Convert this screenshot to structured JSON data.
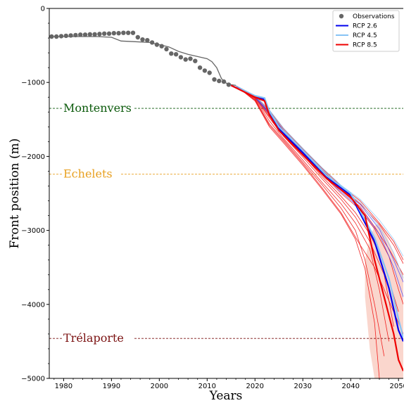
{
  "chart_data": {
    "type": "line",
    "title": "",
    "xlabel": "Years",
    "ylabel": "Front position (m)",
    "xlim": [
      1977,
      2051
    ],
    "ylim": [
      -5000,
      0
    ],
    "x_ticks": [
      1980,
      1990,
      2000,
      2010,
      2020,
      2030,
      2040,
      2050
    ],
    "y_ticks": [
      0,
      -1000,
      -2000,
      -3000,
      -4000,
      -5000
    ],
    "grid": false,
    "legend_position": "top-right",
    "legend": [
      {
        "label": "Observations",
        "kind": "marker",
        "color": "#666666"
      },
      {
        "label": "RCP 2.6",
        "kind": "line",
        "color": "#0000ee"
      },
      {
        "label": "RCP 4.5",
        "kind": "line",
        "color": "#87c3f5"
      },
      {
        "label": "RCP 8.5",
        "kind": "line",
        "color": "#ee0000"
      }
    ],
    "reference_lines": [
      {
        "label": "Montenvers",
        "y": -1350,
        "color": "#0b5a0b"
      },
      {
        "label": "Echelets",
        "y": -2240,
        "color": "#e8a020"
      },
      {
        "label": "Trélaporte",
        "y": -4460,
        "color": "#7a1010"
      }
    ],
    "observations": {
      "x": [
        1977.5,
        1978.5,
        1979.5,
        1980.5,
        1981.5,
        1982.5,
        1983.5,
        1984.5,
        1985.5,
        1986.5,
        1987.5,
        1988.5,
        1989.5,
        1990.5,
        1991.5,
        1992.5,
        1993.5,
        1994.5,
        1995.5,
        1996.5,
        1997.5,
        1998.5,
        1999.5,
        2000.5,
        2001.5,
        2002.5,
        2003.5,
        2004.5,
        2005.5,
        2006.5,
        2007.5,
        2008.5,
        2009.5,
        2010.5,
        2011.5,
        2012.5,
        2013.5,
        2014.5
      ],
      "y": [
        -380,
        -380,
        -375,
        -370,
        -365,
        -360,
        -355,
        -355,
        -350,
        -350,
        -345,
        -340,
        -340,
        -335,
        -335,
        -330,
        -330,
        -330,
        -390,
        -420,
        -430,
        -460,
        -490,
        -510,
        -550,
        -610,
        -620,
        -660,
        -690,
        -680,
        -710,
        -800,
        -840,
        -870,
        -960,
        -980,
        -990,
        -1030
      ]
    },
    "modelled_past": {
      "x": [
        1977,
        1982,
        1987,
        1990,
        1992,
        1995,
        1998,
        2000,
        2002,
        2004,
        2006,
        2008,
        2010,
        2011,
        2012,
        2013,
        2014,
        2015,
        2016
      ],
      "y": [
        -380,
        -380,
        -380,
        -390,
        -440,
        -450,
        -460,
        -490,
        -520,
        -580,
        -620,
        -650,
        -680,
        -720,
        -800,
        -950,
        -1010,
        -1030,
        -1040
      ]
    },
    "rcp85_uncertainty_band": {
      "x": [
        2043,
        2044,
        2045,
        2046,
        2047,
        2048,
        2049,
        2050,
        2051
      ],
      "upper": [
        -3400,
        -3100,
        -2940,
        -2900,
        -3000,
        -3150,
        -3300,
        -3480,
        -3600
      ],
      "lower": [
        -3900,
        -4600,
        -5000,
        -5000,
        -5000,
        -5000,
        -5000,
        -5000,
        -5000
      ]
    },
    "series": [
      {
        "name": "RCP 2.6",
        "color": "#0000ee",
        "x": [
          2015,
          2020,
          2022,
          2023,
          2025,
          2030,
          2035,
          2040,
          2045,
          2048,
          2050,
          2051
        ],
        "y": [
          -1040,
          -1190,
          -1230,
          -1420,
          -1630,
          -1950,
          -2280,
          -2520,
          -3150,
          -3780,
          -4350,
          -4500
        ]
      },
      {
        "name": "RCP 4.5",
        "color": "#87c3f5",
        "x": [
          2015,
          2020,
          2022,
          2023,
          2025,
          2030,
          2035,
          2040,
          2045,
          2048,
          2050,
          2051
        ],
        "y": [
          -1040,
          -1180,
          -1210,
          -1390,
          -1600,
          -1920,
          -2260,
          -2500,
          -3100,
          -3650,
          -4200,
          -4450
        ]
      },
      {
        "name": "RCP 8.5",
        "color": "#ee0000",
        "x": [
          2015,
          2020,
          2022,
          2023,
          2025,
          2030,
          2035,
          2040,
          2043,
          2045,
          2047,
          2049,
          2050,
          2051
        ],
        "y": [
          -1040,
          -1200,
          -1250,
          -1440,
          -1650,
          -1980,
          -2300,
          -2550,
          -2800,
          -3400,
          -3900,
          -4400,
          -4750,
          -4900
        ]
      }
    ],
    "members": [
      {
        "color": "#ee0000",
        "x": [
          2016,
          2020,
          2023,
          2026,
          2030,
          2034,
          2038,
          2041,
          2043,
          2045,
          2046
        ],
        "y": [
          -1045,
          -1250,
          -1600,
          -1820,
          -2120,
          -2440,
          -2780,
          -3120,
          -3520,
          -4250,
          -5000
        ]
      },
      {
        "color": "#ee0000",
        "x": [
          2016,
          2020,
          2023,
          2026,
          2030,
          2034,
          2038,
          2041,
          2043,
          2045,
          2047
        ],
        "y": [
          -1045,
          -1230,
          -1560,
          -1780,
          -2080,
          -2380,
          -2700,
          -3000,
          -3400,
          -4000,
          -4700
        ]
      },
      {
        "color": "#ee0000",
        "x": [
          2016,
          2020,
          2023,
          2026,
          2030,
          2034,
          2038,
          2041,
          2044,
          2046,
          2048
        ],
        "y": [
          -1045,
          -1220,
          -1520,
          -1760,
          -2050,
          -2350,
          -2640,
          -2900,
          -3250,
          -3800,
          -4500
        ]
      },
      {
        "color": "#ee0000",
        "x": [
          2016,
          2020,
          2023,
          2026,
          2030,
          2034,
          2038,
          2041,
          2044,
          2047,
          2049
        ],
        "y": [
          -1045,
          -1210,
          -1480,
          -1730,
          -2010,
          -2300,
          -2580,
          -2820,
          -3150,
          -3600,
          -4300
        ]
      },
      {
        "color": "#ee0000",
        "x": [
          2016,
          2020,
          2023,
          2026,
          2030,
          2034,
          2038,
          2041,
          2044,
          2047,
          2050
        ],
        "y": [
          -1045,
          -1200,
          -1460,
          -1710,
          -1980,
          -2270,
          -2540,
          -2760,
          -3050,
          -3450,
          -4100
        ]
      },
      {
        "color": "#ee0000",
        "x": [
          2016,
          2020,
          2023,
          2026,
          2030,
          2034,
          2038,
          2042,
          2045,
          2048,
          2050,
          2051
        ],
        "y": [
          -1045,
          -1195,
          -1440,
          -1690,
          -1960,
          -2240,
          -2500,
          -2720,
          -2980,
          -3350,
          -3800,
          -4000
        ]
      },
      {
        "color": "#ee0000",
        "x": [
          2016,
          2020,
          2023,
          2026,
          2030,
          2034,
          2038,
          2042,
          2045,
          2048,
          2051
        ],
        "y": [
          -1045,
          -1190,
          -1420,
          -1670,
          -1940,
          -2210,
          -2460,
          -2680,
          -2950,
          -3250,
          -3600
        ]
      },
      {
        "color": "#ee0000",
        "x": [
          2016,
          2020,
          2023,
          2026,
          2030,
          2034,
          2038,
          2042,
          2046,
          2049,
          2051
        ],
        "y": [
          -1045,
          -1185,
          -1400,
          -1650,
          -1920,
          -2180,
          -2430,
          -2640,
          -2920,
          -3200,
          -3450
        ]
      },
      {
        "color": "#ee0000",
        "x": [
          2016,
          2020,
          2023,
          2026,
          2030,
          2034,
          2038,
          2042,
          2046,
          2049,
          2051
        ],
        "y": [
          -1045,
          -1180,
          -1380,
          -1630,
          -1900,
          -2160,
          -2400,
          -2600,
          -2900,
          -3150,
          -3400
        ]
      },
      {
        "color": "#ee0000",
        "x": [
          2016,
          2020,
          2023,
          2026,
          2030,
          2034,
          2038,
          2042,
          2045,
          2047,
          2049,
          2051
        ],
        "y": [
          -1045,
          -1240,
          -1580,
          -1800,
          -2100,
          -2420,
          -2760,
          -3200,
          -3500,
          -3800,
          -4100,
          -4400
        ]
      },
      {
        "color": "#4040ff",
        "x": [
          2016,
          2020,
          2023,
          2026,
          2030,
          2034,
          2038,
          2042,
          2046,
          2049,
          2051
        ],
        "y": [
          -1045,
          -1200,
          -1430,
          -1680,
          -1950,
          -2230,
          -2480,
          -2700,
          -3050,
          -3500,
          -3900
        ]
      },
      {
        "color": "#4040ff",
        "x": [
          2016,
          2020,
          2023,
          2026,
          2030,
          2034,
          2038,
          2042,
          2046,
          2049,
          2051
        ],
        "y": [
          -1045,
          -1190,
          -1410,
          -1660,
          -1930,
          -2200,
          -2450,
          -2650,
          -2980,
          -3400,
          -3700
        ]
      },
      {
        "color": "#87c3f5",
        "x": [
          2016,
          2020,
          2023,
          2026,
          2030,
          2034,
          2038,
          2042,
          2046,
          2049,
          2051
        ],
        "y": [
          -1045,
          -1175,
          -1370,
          -1620,
          -1890,
          -2150,
          -2390,
          -2580,
          -2860,
          -3120,
          -3350
        ]
      },
      {
        "color": "#87c3f5",
        "x": [
          2016,
          2020,
          2023,
          2026,
          2030,
          2034,
          2038,
          2042,
          2046,
          2049,
          2051
        ],
        "y": [
          -1045,
          -1185,
          -1390,
          -1640,
          -1910,
          -2170,
          -2420,
          -2620,
          -2950,
          -3300,
          -3650
        ]
      }
    ]
  }
}
